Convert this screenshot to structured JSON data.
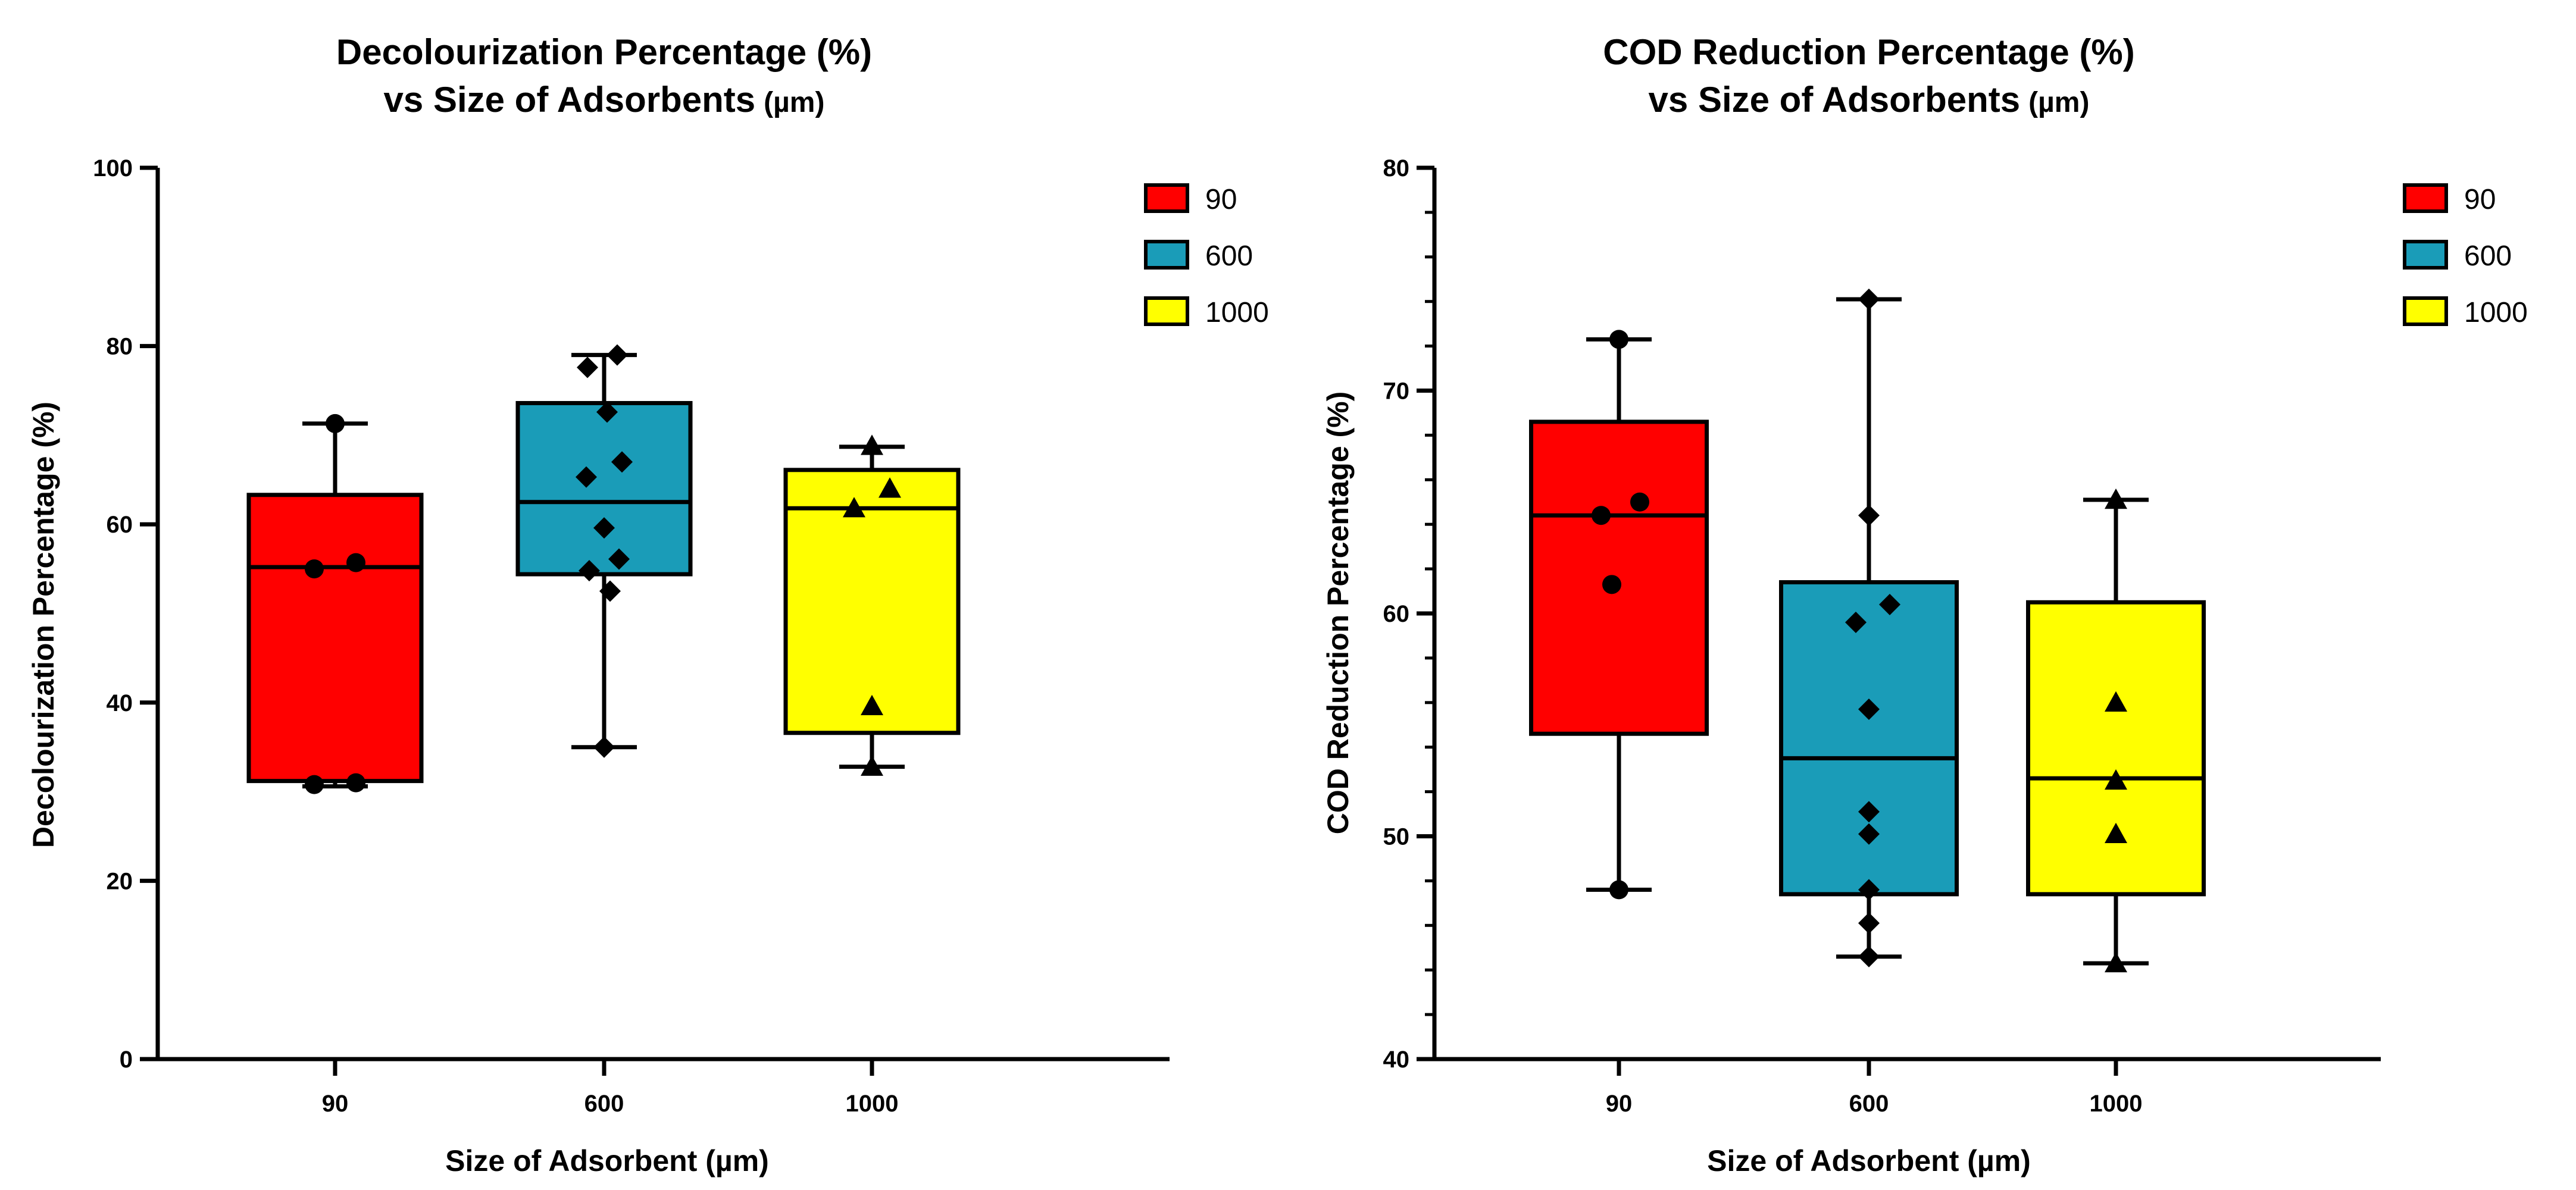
{
  "chart_data": [
    {
      "type": "box",
      "title_line1": "Decolourization Percentage (%)",
      "title_line2": "vs Size of Adsorbents",
      "title_unit": "(µm)",
      "xlabel": "Size of Adsorbent (µm)",
      "ylabel": "Decolourization Percentage (%)",
      "ylim": [
        0,
        100
      ],
      "yticks": [
        0,
        20,
        40,
        60,
        80,
        100
      ],
      "minor_ticks": false,
      "categories": [
        "90",
        "600",
        "1000"
      ],
      "legend": [
        "90",
        "600",
        "1000"
      ],
      "legend_position": "top-right",
      "colors": [
        "#ff0000",
        "#1a9cb8",
        "#ffff00"
      ],
      "markers": [
        "circle",
        "diamond",
        "triangle"
      ],
      "boxes": [
        {
          "whisker_low": 30.6,
          "q1": 31.2,
          "median": 55.2,
          "q3": 63.3,
          "whisker_high": 71.3
        },
        {
          "whisker_low": 35.0,
          "q1": 54.4,
          "median": 62.5,
          "q3": 73.6,
          "whisker_high": 79.0
        },
        {
          "whisker_low": 32.8,
          "q1": 36.6,
          "median": 61.8,
          "q3": 66.1,
          "whisker_high": 68.7
        }
      ],
      "points": [
        [
          71.3,
          55.7,
          55.0,
          31.0,
          30.8
        ],
        [
          79.0,
          77.6,
          72.6,
          67.0,
          65.3,
          59.6,
          56.1,
          54.8,
          52.5,
          35.0
        ],
        [
          68.8,
          64.0,
          61.8,
          39.6,
          32.8
        ]
      ],
      "jitter": [
        [
          0,
          35,
          -35,
          35,
          -35
        ],
        [
          22,
          -28,
          5,
          30,
          -30,
          0,
          25,
          -25,
          10,
          0
        ],
        [
          0,
          30,
          -30,
          0,
          0
        ]
      ]
    },
    {
      "type": "box",
      "title_line1": "COD Reduction Percentage (%)",
      "title_line2": "vs Size of Adsorbents",
      "title_unit": "(µm)",
      "xlabel": "Size of Adsorbent (µm)",
      "ylabel": "COD Reduction Percentage (%)",
      "ylim": [
        40,
        80
      ],
      "yticks": [
        40,
        50,
        60,
        70,
        80
      ],
      "minor_ticks": true,
      "categories": [
        "90",
        "600",
        "1000"
      ],
      "legend": [
        "90",
        "600",
        "1000"
      ],
      "legend_position": "top-right",
      "colors": [
        "#ff0000",
        "#1a9cb8",
        "#ffff00"
      ],
      "markers": [
        "circle",
        "diamond",
        "triangle"
      ],
      "boxes": [
        {
          "whisker_low": 47.6,
          "q1": 54.6,
          "median": 64.4,
          "q3": 68.6,
          "whisker_high": 72.3
        },
        {
          "whisker_low": 44.6,
          "q1": 47.4,
          "median": 53.5,
          "q3": 61.4,
          "whisker_high": 74.1
        },
        {
          "whisker_low": 44.3,
          "q1": 47.4,
          "median": 52.6,
          "q3": 60.5,
          "whisker_high": 65.1
        }
      ],
      "points": [
        [
          72.3,
          65.0,
          64.4,
          61.3,
          47.6
        ],
        [
          74.1,
          64.4,
          60.4,
          59.6,
          55.7,
          51.1,
          50.1,
          47.6,
          46.1,
          44.6
        ],
        [
          65.1,
          56.0,
          52.5,
          50.1,
          44.3
        ]
      ],
      "jitter": [
        [
          0,
          35,
          -30,
          -12,
          0
        ],
        [
          0,
          0,
          35,
          -22,
          0,
          0,
          0,
          0,
          0,
          0
        ],
        [
          0,
          0,
          0,
          0,
          0
        ]
      ]
    }
  ]
}
